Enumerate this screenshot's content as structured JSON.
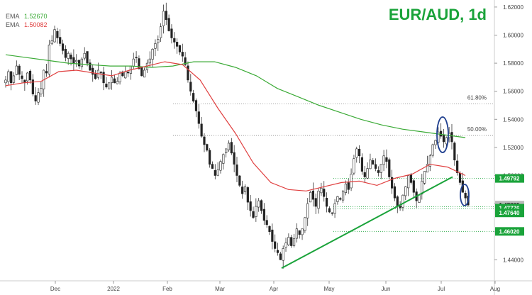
{
  "chart_data": {
    "type": "candlestick",
    "title": "EUR/AUD, 1d",
    "legend": [
      {
        "name": "EMA",
        "value": "1.52670",
        "color": "#3aaa35"
      },
      {
        "name": "EMA",
        "value": "1.50082",
        "color": "#e04040"
      }
    ],
    "y_axis": {
      "ticks": [
        "1.62000",
        "1.60000",
        "1.58000",
        "1.56000",
        "1.54000",
        "1.52000",
        "1.50000",
        "1.48000",
        "1.46000",
        "1.44000"
      ],
      "ylim": [
        1.425,
        1.625
      ]
    },
    "x_axis": {
      "ticks": [
        "Dec",
        "2022",
        "Feb",
        "Mar",
        "Apr",
        "May",
        "Jun",
        "Jul",
        "Aug"
      ]
    },
    "fib_levels": [
      {
        "label": "61.80%",
        "value": 1.551
      },
      {
        "label": "50.00%",
        "value": 1.5285
      }
    ],
    "price_labels": [
      {
        "text": "1.49792",
        "value": 1.49792,
        "bg": "#1aa33a"
      },
      {
        "text": "1.47895",
        "value": 1.47895,
        "bg": "#bbbbbb"
      },
      {
        "text": "1.47776",
        "value": 1.47776,
        "bg": "#1aa33a"
      },
      {
        "text": "1.47640",
        "value": 1.4764,
        "bg": "#1aa33a"
      },
      {
        "text": "1.46020",
        "value": 1.4602,
        "bg": "#1aa33a"
      }
    ],
    "trendline": {
      "from": [
        "Apr 01",
        1.434
      ],
      "to": [
        "Jun 30",
        1.499
      ],
      "color": "#1aa33a"
    },
    "candle_close_series": {
      "days_axis_note": "approximate daily closes, Nov 22 to Jul 11",
      "closes": [
        1.568,
        1.574,
        1.566,
        1.571,
        1.578,
        1.572,
        1.569,
        1.566,
        1.573,
        1.568,
        1.558,
        1.553,
        1.559,
        1.562,
        1.575,
        1.573,
        1.593,
        1.596,
        1.604,
        1.598,
        1.594,
        1.589,
        1.584,
        1.587,
        1.583,
        1.58,
        1.582,
        1.578,
        1.583,
        1.587,
        1.58,
        1.575,
        1.572,
        1.569,
        1.575,
        1.573,
        1.566,
        1.563,
        1.566,
        1.57,
        1.566,
        1.567,
        1.573,
        1.571,
        1.574,
        1.573,
        1.578,
        1.583,
        1.584,
        1.576,
        1.571,
        1.575,
        1.58,
        1.583,
        1.59,
        1.594,
        1.597,
        1.606,
        1.617,
        1.611,
        1.603,
        1.598,
        1.595,
        1.592,
        1.588,
        1.585,
        1.579,
        1.568,
        1.56,
        1.553,
        1.546,
        1.537,
        1.528,
        1.522,
        1.518,
        1.508,
        1.505,
        1.5,
        1.504,
        1.51,
        1.515,
        1.519,
        1.523,
        1.516,
        1.508,
        1.5,
        1.493,
        1.487,
        1.492,
        1.481,
        1.475,
        1.47,
        1.478,
        1.482,
        1.475,
        1.468,
        1.465,
        1.46,
        1.453,
        1.448,
        1.445,
        1.44,
        1.448,
        1.452,
        1.456,
        1.45,
        1.455,
        1.462,
        1.458,
        1.462,
        1.47,
        1.48,
        1.488,
        1.483,
        1.478,
        1.489,
        1.491,
        1.485,
        1.478,
        1.474,
        1.473,
        1.48,
        1.485,
        1.483,
        1.489,
        1.494,
        1.49,
        1.501,
        1.512,
        1.519,
        1.514,
        1.503,
        1.499,
        1.505,
        1.511,
        1.508,
        1.505,
        1.502,
        1.508,
        1.514,
        1.51,
        1.499,
        1.491,
        1.484,
        1.478,
        1.477,
        1.486,
        1.492,
        1.5,
        1.495,
        1.488,
        1.482,
        1.486,
        1.496,
        1.503,
        1.508,
        1.514,
        1.522,
        1.525,
        1.531,
        1.528,
        1.524,
        1.527,
        1.53,
        1.524,
        1.511,
        1.502,
        1.495,
        1.488,
        1.484,
        1.479
      ]
    },
    "ema_slow_points": [
      1.586,
      1.584,
      1.582,
      1.58,
      1.579,
      1.578,
      1.578,
      1.577,
      1.578,
      1.581,
      1.581,
      1.577,
      1.571,
      1.562,
      1.556,
      1.55,
      1.545,
      1.54,
      1.536,
      1.533,
      1.531,
      1.529,
      1.527
    ],
    "ema_fast_points": [
      1.564,
      1.566,
      1.567,
      1.574,
      1.575,
      1.573,
      1.571,
      1.575,
      1.578,
      1.581,
      1.579,
      1.568,
      1.548,
      1.53,
      1.509,
      1.495,
      1.49,
      1.489,
      1.492,
      1.495,
      1.496,
      1.493,
      1.498,
      1.501,
      1.508,
      1.506,
      1.5
    ]
  }
}
